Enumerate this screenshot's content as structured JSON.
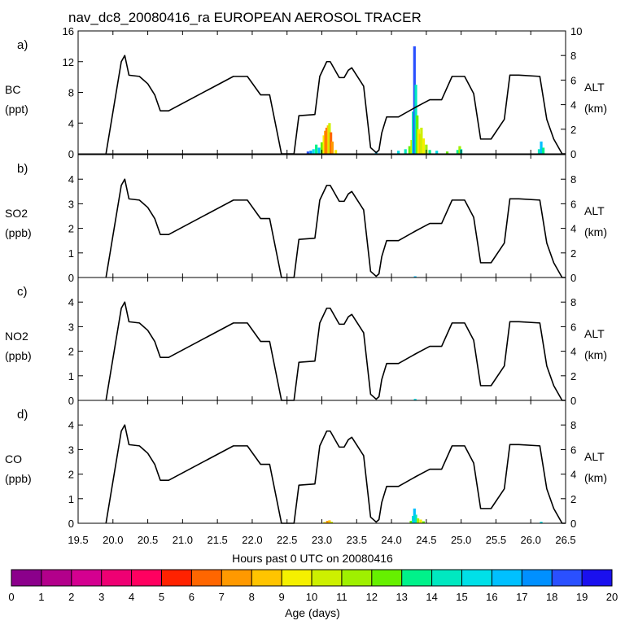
{
  "chart_data": {
    "type": "line",
    "title": "nav_dc8_20080416_ra EUROPEAN AEROSOL TRACER",
    "xlabel": "Hours past 0 UTC on 20080416",
    "xlim": [
      19.5,
      26.5
    ],
    "xticks": [
      "19.5",
      "20.0",
      "20.5",
      "21.0",
      "21.5",
      "22.0",
      "22.5",
      "23.0",
      "23.5",
      "24.0",
      "24.5",
      "25.0",
      "25.5",
      "26.0",
      "26.5"
    ],
    "right_axis": {
      "label": "ALT",
      "unit": "(km)",
      "ylim": [
        0,
        10
      ]
    },
    "altitude_track": {
      "name": "Flight altitude (km)",
      "x": [
        19.9,
        20.12,
        20.17,
        20.23,
        20.38,
        20.5,
        20.6,
        20.68,
        20.8,
        21.73,
        21.93,
        22.12,
        22.25,
        22.42,
        22.6,
        22.67,
        22.9,
        22.97,
        23.07,
        23.12,
        23.25,
        23.32,
        23.38,
        23.43,
        23.6,
        23.7,
        23.78,
        23.82,
        23.86,
        23.93,
        24.1,
        24.35,
        24.45,
        24.55,
        24.72,
        24.87,
        25.05,
        25.18,
        25.28,
        25.43,
        25.62,
        25.7,
        25.83,
        26.13,
        26.23,
        26.33,
        26.45,
        26.5
      ],
      "y": [
        0,
        7.5,
        8,
        6.4,
        6.3,
        5.7,
        4.8,
        3.5,
        3.5,
        6.3,
        6.3,
        4.8,
        4.8,
        0,
        0,
        3.1,
        3.2,
        6.3,
        7.5,
        7.5,
        6.2,
        6.2,
        6.8,
        7,
        5.5,
        0.5,
        0.1,
        0.3,
        1.7,
        3,
        3,
        3.8,
        4.1,
        4.4,
        4.4,
        6.3,
        6.3,
        4.9,
        1.2,
        1.2,
        2.8,
        6.4,
        6.4,
        6.3,
        2.8,
        1.2,
        0,
        0
      ]
    },
    "colorbar": {
      "label": "Age (days)",
      "ticks": [
        "0",
        "1",
        "2",
        "3",
        "4",
        "5",
        "6",
        "7",
        "8",
        "9",
        "10",
        "11",
        "12",
        "13",
        "14",
        "15",
        "16",
        "17",
        "18",
        "19",
        "20"
      ],
      "colors": [
        "#8b008b",
        "#b3008b",
        "#d40090",
        "#ee0073",
        "#ff0060",
        "#ff2200",
        "#ff6600",
        "#ff9900",
        "#ffc400",
        "#f5f000",
        "#cdf000",
        "#9ff000",
        "#66f000",
        "#00f28a",
        "#00e8c0",
        "#00e0e8",
        "#00c0ff",
        "#0090ff",
        "#2a50ff",
        "#1a10ee",
        "#6a3cff"
      ]
    },
    "panels": [
      {
        "letter": "a)",
        "species": "BC",
        "unit": "(ppt)",
        "ylim": [
          0,
          16
        ],
        "yticks": [
          "0",
          "4",
          "8",
          "12",
          "16"
        ],
        "alt_ticks": [
          "0",
          "2",
          "4",
          "6",
          "8",
          "10"
        ],
        "tracer": [
          {
            "x": 22.8,
            "y": 0.3,
            "age": 18
          },
          {
            "x": 22.84,
            "y": 0.4,
            "age": 17
          },
          {
            "x": 22.88,
            "y": 0.6,
            "age": 15
          },
          {
            "x": 22.92,
            "y": 1.2,
            "age": 13
          },
          {
            "x": 22.96,
            "y": 0.8,
            "age": 16
          },
          {
            "x": 23.0,
            "y": 1.5,
            "age": 12
          },
          {
            "x": 23.03,
            "y": 2.4,
            "age": 9
          },
          {
            "x": 23.05,
            "y": 3.0,
            "age": 7
          },
          {
            "x": 23.07,
            "y": 3.4,
            "age": 6
          },
          {
            "x": 23.09,
            "y": 3.7,
            "age": 8
          },
          {
            "x": 23.11,
            "y": 4.0,
            "age": 10
          },
          {
            "x": 23.13,
            "y": 2.8,
            "age": 6
          },
          {
            "x": 23.15,
            "y": 1.6,
            "age": 7
          },
          {
            "x": 23.2,
            "y": 0.5,
            "age": 9
          },
          {
            "x": 23.78,
            "y": 0.3,
            "age": 16
          },
          {
            "x": 24.1,
            "y": 0.4,
            "age": 15
          },
          {
            "x": 24.2,
            "y": 0.6,
            "age": 14
          },
          {
            "x": 24.26,
            "y": 1.0,
            "age": 12
          },
          {
            "x": 24.29,
            "y": 1.8,
            "age": 10
          },
          {
            "x": 24.31,
            "y": 5.5,
            "age": 14
          },
          {
            "x": 24.33,
            "y": 14.0,
            "age": 18
          },
          {
            "x": 24.35,
            "y": 9.0,
            "age": 14
          },
          {
            "x": 24.37,
            "y": 5.0,
            "age": 12
          },
          {
            "x": 24.39,
            "y": 3.2,
            "age": 9
          },
          {
            "x": 24.41,
            "y": 2.6,
            "age": 8
          },
          {
            "x": 24.43,
            "y": 3.4,
            "age": 10
          },
          {
            "x": 24.46,
            "y": 2.0,
            "age": 9
          },
          {
            "x": 24.5,
            "y": 1.2,
            "age": 11
          },
          {
            "x": 24.55,
            "y": 0.5,
            "age": 13
          },
          {
            "x": 24.65,
            "y": 0.4,
            "age": 15
          },
          {
            "x": 24.8,
            "y": 0.3,
            "age": 12
          },
          {
            "x": 24.95,
            "y": 0.5,
            "age": 13
          },
          {
            "x": 24.98,
            "y": 1.0,
            "age": 11
          },
          {
            "x": 25.0,
            "y": 0.6,
            "age": 14
          },
          {
            "x": 26.12,
            "y": 0.6,
            "age": 14
          },
          {
            "x": 26.15,
            "y": 1.6,
            "age": 16
          },
          {
            "x": 26.18,
            "y": 0.8,
            "age": 13
          }
        ]
      },
      {
        "letter": "b)",
        "species": "SO2",
        "unit": "(ppb)",
        "ylim": [
          0,
          5
        ],
        "yticks": [
          "0",
          "1",
          "2",
          "3",
          "4"
        ],
        "alt_ticks": [
          "0",
          "2",
          "4",
          "6",
          "8"
        ],
        "tracer": [
          {
            "x": 24.34,
            "y": 0.05,
            "age": 16
          }
        ]
      },
      {
        "letter": "c)",
        "species": "NO2",
        "unit": "(ppb)",
        "ylim": [
          0,
          5
        ],
        "yticks": [
          "0",
          "1",
          "2",
          "3",
          "4"
        ],
        "alt_ticks": [
          "0",
          "2",
          "4",
          "6",
          "8"
        ],
        "tracer": [
          {
            "x": 24.34,
            "y": 0.06,
            "age": 15
          }
        ]
      },
      {
        "letter": "d)",
        "species": "CO",
        "unit": "(ppb)",
        "ylim": [
          0,
          5
        ],
        "yticks": [
          "0",
          "1",
          "2",
          "3",
          "4"
        ],
        "alt_ticks": [
          "0",
          "2",
          "4",
          "6",
          "8"
        ],
        "tracer": [
          {
            "x": 23.04,
            "y": 0.05,
            "age": 9
          },
          {
            "x": 23.08,
            "y": 0.1,
            "age": 7
          },
          {
            "x": 23.11,
            "y": 0.12,
            "age": 8
          },
          {
            "x": 23.14,
            "y": 0.06,
            "age": 10
          },
          {
            "x": 24.28,
            "y": 0.1,
            "age": 12
          },
          {
            "x": 24.31,
            "y": 0.3,
            "age": 14
          },
          {
            "x": 24.33,
            "y": 0.6,
            "age": 16
          },
          {
            "x": 24.35,
            "y": 0.35,
            "age": 14
          },
          {
            "x": 24.38,
            "y": 0.2,
            "age": 11
          },
          {
            "x": 24.42,
            "y": 0.15,
            "age": 9
          },
          {
            "x": 24.46,
            "y": 0.08,
            "age": 12
          },
          {
            "x": 26.15,
            "y": 0.06,
            "age": 15
          }
        ]
      }
    ]
  }
}
